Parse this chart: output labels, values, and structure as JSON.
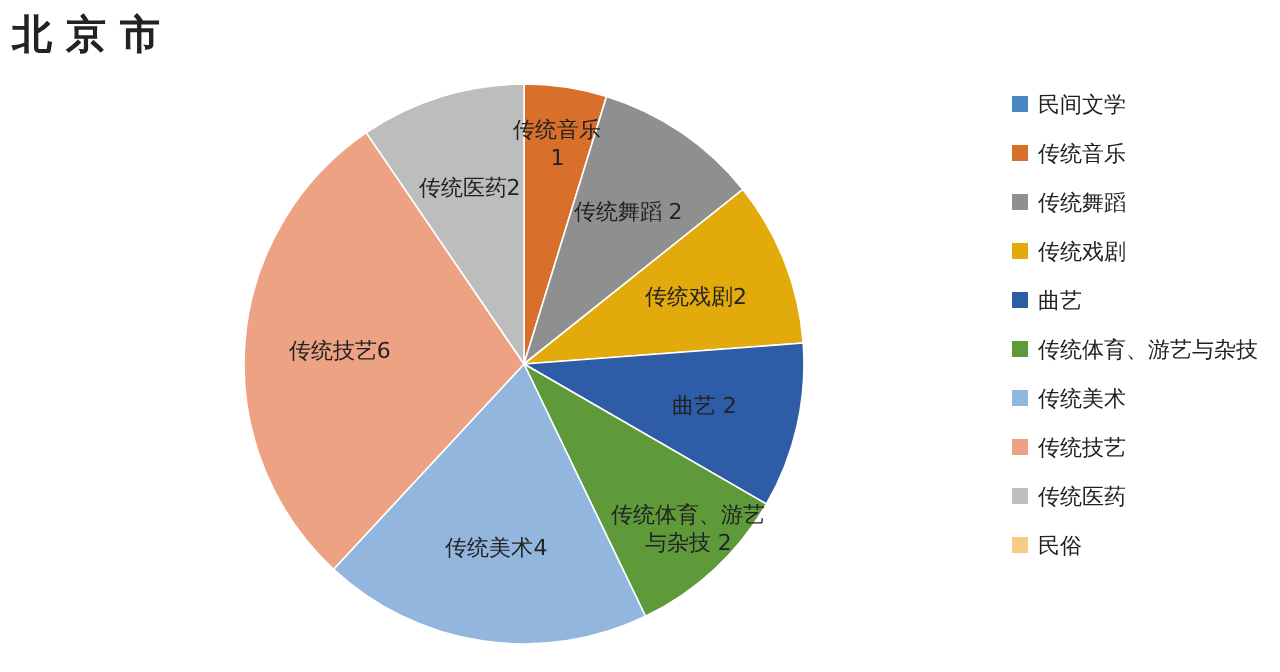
{
  "chart_data": {
    "type": "pie",
    "title": "北 京 市",
    "categories": [
      "民间文学",
      "传统音乐",
      "传统舞蹈",
      "传统戏剧",
      "曲艺",
      "传统体育、游艺与杂技",
      "传统美术",
      "传统技艺",
      "传统医药",
      "民俗"
    ],
    "values": [
      0,
      1,
      2,
      2,
      2,
      2,
      4,
      6,
      2,
      0
    ],
    "colors": [
      "#4a86c0",
      "#d8702c",
      "#8f8f8f",
      "#e2aa0a",
      "#2f5ca6",
      "#5f9a3a",
      "#93b6df",
      "#eca283",
      "#bdbdbd",
      "#f6cc84"
    ],
    "value_labels": [
      null,
      "传统音乐 1",
      "传统舞蹈 2",
      "传统戏剧2",
      "曲艺 2",
      "传统体育、游艺与杂技 2",
      "传统美术4",
      "传统技艺6",
      "传统医药2",
      null
    ],
    "legend": "right"
  }
}
